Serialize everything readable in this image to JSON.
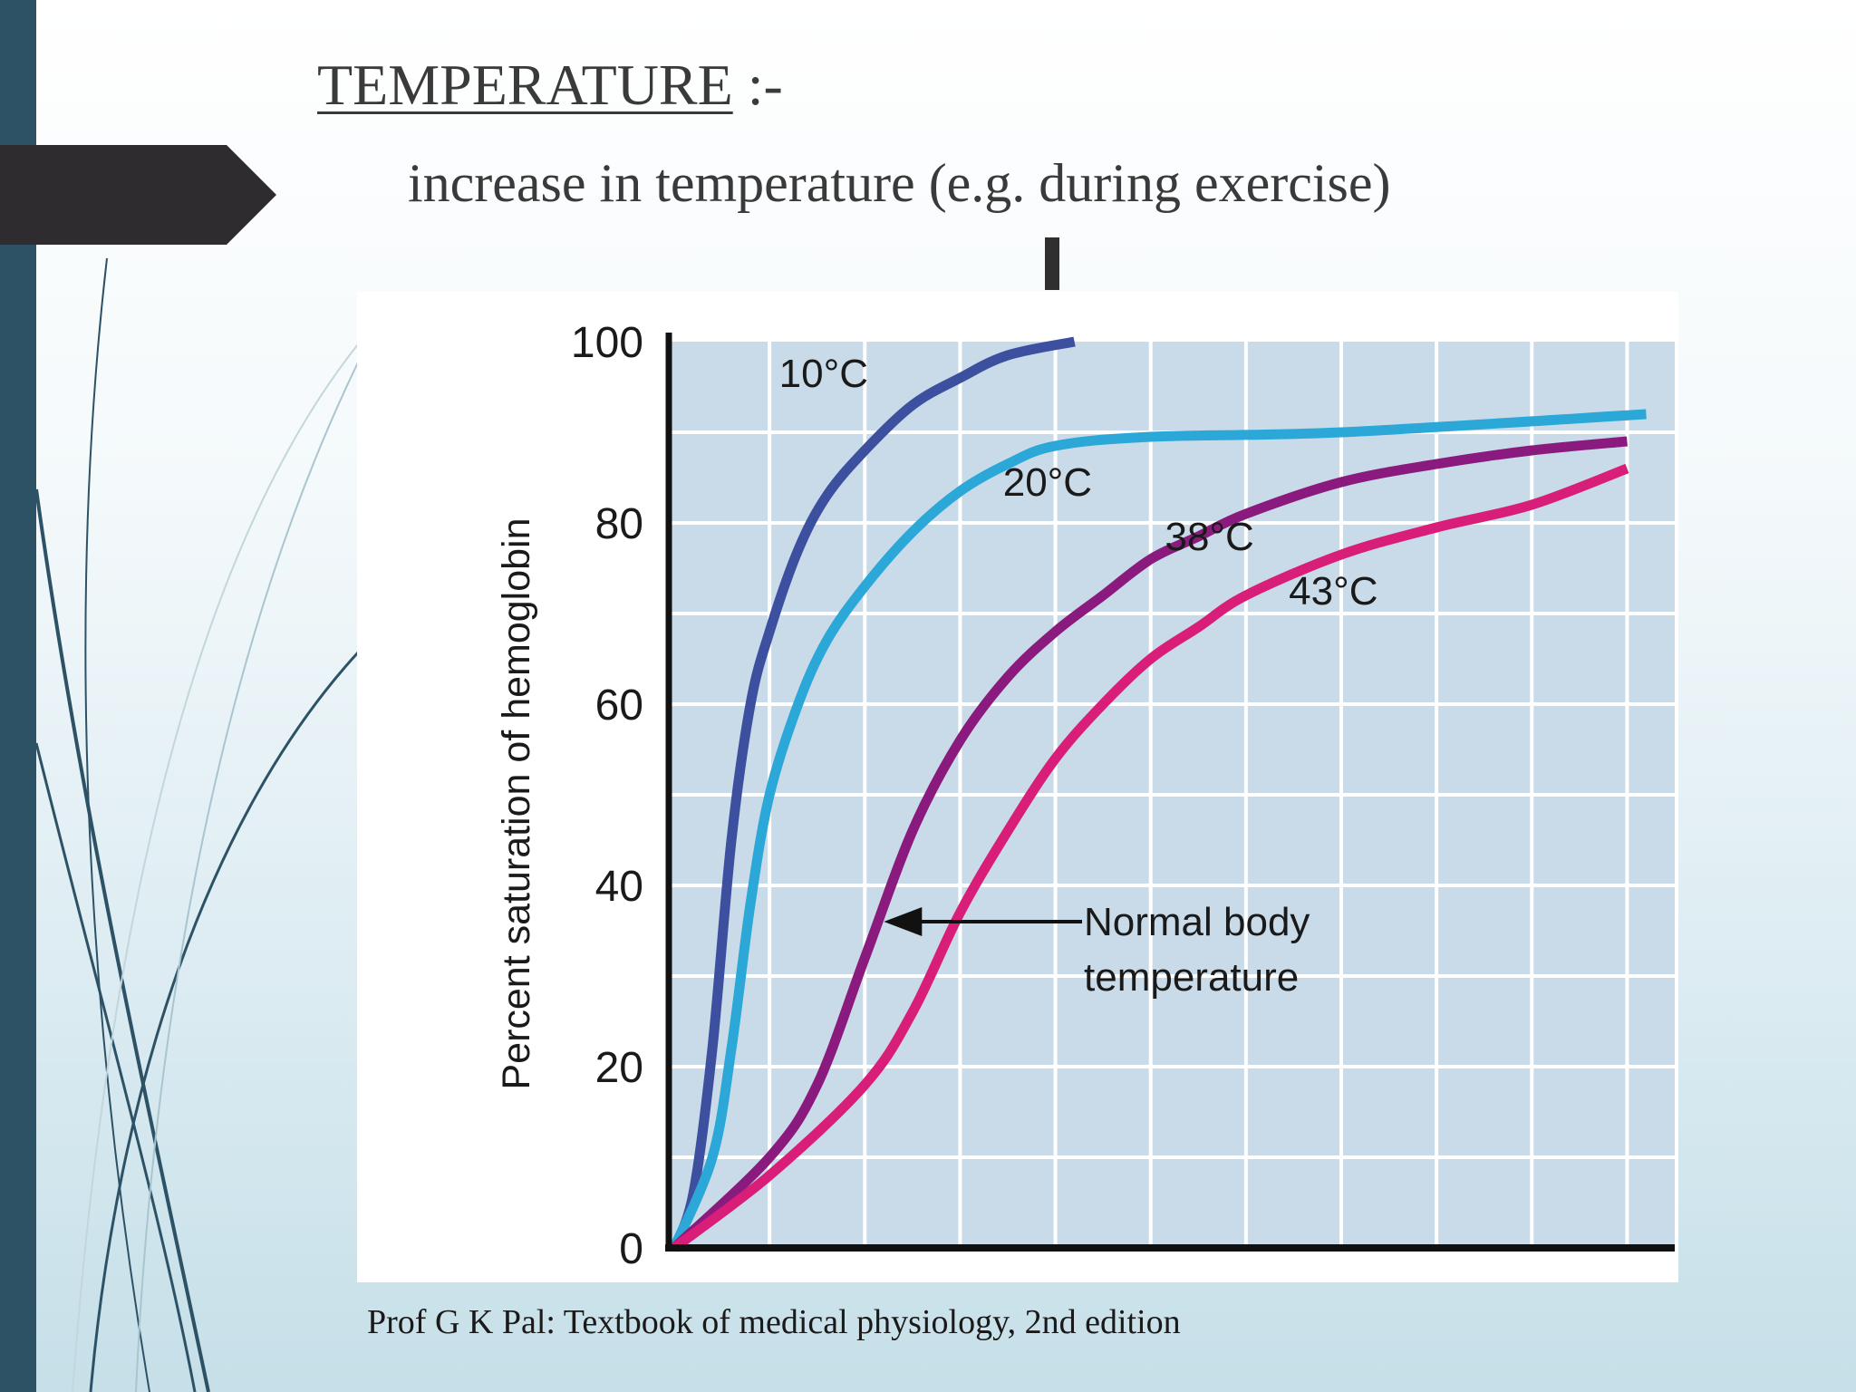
{
  "slide": {
    "title": "TEMPERATURE",
    "title_suffix": " :-",
    "subtitle": "increase in temperature (e.g. during exercise)",
    "citation": "Prof G K Pal: Textbook of medical physiology, 2nd edition"
  },
  "chart_data": {
    "type": "line",
    "title": "",
    "xlabel": "",
    "ylabel": "Percent saturation of hemoglobin",
    "xlim": [
      0,
      10.5
    ],
    "ylim": [
      0,
      100
    ],
    "yticks": [
      0,
      20,
      40,
      60,
      80,
      100
    ],
    "x_gridlines": [
      1,
      2,
      3,
      4,
      5,
      6,
      7,
      8,
      9,
      10
    ],
    "grid": true,
    "background_color": "#c9dbe8",
    "series": [
      {
        "name": "10°C",
        "color": "#3d4f9f",
        "x": [
          0,
          0.2,
          0.4,
          0.6,
          0.8,
          1.0,
          1.3,
          1.6,
          2.0,
          2.5,
          3.0,
          3.5,
          4.2
        ],
        "y": [
          0,
          6,
          22,
          45,
          60,
          68,
          77,
          83,
          88,
          93,
          96,
          98.5,
          100
        ]
      },
      {
        "name": "20°C",
        "color": "#2ba7d8",
        "x": [
          0,
          0.4,
          0.6,
          0.8,
          1.0,
          1.3,
          1.6,
          2.0,
          2.5,
          3.0,
          3.5,
          4.0,
          5.0,
          7.0,
          10.2
        ],
        "y": [
          0,
          10,
          22,
          38,
          50,
          60,
          67,
          73,
          79,
          83.5,
          86.5,
          88.5,
          89.5,
          90,
          92
        ]
      },
      {
        "name": "38°C",
        "color": "#8a1a7e",
        "x": [
          0,
          1.0,
          1.5,
          2.0,
          2.5,
          3.0,
          3.5,
          4.0,
          4.5,
          5.0,
          5.5,
          6.0,
          7.0,
          8.0,
          9.0,
          10.0
        ],
        "y": [
          0,
          10,
          18,
          32,
          46,
          56,
          63,
          68,
          72,
          76,
          78.5,
          81,
          84.5,
          86.5,
          88,
          89
        ]
      },
      {
        "name": "43°C",
        "color": "#d81e78",
        "x": [
          0,
          1.0,
          2.0,
          2.5,
          3.0,
          3.5,
          4.0,
          4.5,
          5.0,
          5.5,
          6.0,
          7.0,
          8.0,
          9.0,
          10.0
        ],
        "y": [
          0,
          8,
          18,
          26,
          37,
          46,
          54,
          60,
          65,
          68.5,
          72,
          76.5,
          79.5,
          82,
          86
        ]
      }
    ],
    "annotations": [
      {
        "text": "Normal body",
        "points_to_series": "38°C",
        "at": [
          2.2,
          36
        ]
      },
      {
        "text": "temperature"
      }
    ]
  }
}
